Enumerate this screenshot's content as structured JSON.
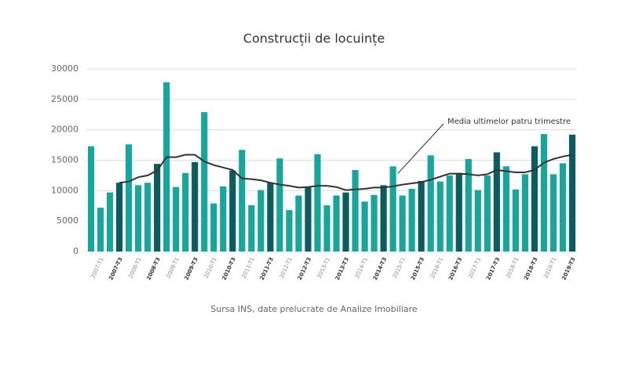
{
  "chart_data": {
    "type": "bar",
    "title": "Construcții de locuințe",
    "source": "Sursa INS, date prelucrate de Analize Imobiliare",
    "categories": [
      null,
      "2007-T1",
      null,
      "2007-T3",
      null,
      "2008-T1",
      null,
      "2008-T3",
      null,
      "2009-T1",
      null,
      "2009-T3",
      null,
      "2010-T1",
      null,
      "2010-T3",
      null,
      "2011-T1",
      null,
      "2011-T3",
      null,
      "2012-T1",
      null,
      "2012-T3",
      null,
      "2013-T1",
      null,
      "2013-T3",
      null,
      "2014-T1",
      null,
      "2014-T3",
      null,
      "2015-T1",
      null,
      "2015-T3",
      null,
      "2016-T1",
      null,
      "2016-T3",
      null,
      "2017-T1",
      null,
      "2017-T3",
      null,
      "2018-T1",
      null,
      "2018-T3",
      null,
      "2019-T1",
      null,
      "2019-T3"
    ],
    "bars": {
      "values": [
        17300,
        7200,
        9700,
        11300,
        17600,
        10900,
        11300,
        14400,
        27800,
        10600,
        12900,
        14700,
        22900,
        7900,
        10700,
        13300,
        16700,
        7600,
        10100,
        11300,
        15300,
        6800,
        9200,
        10700,
        16000,
        7600,
        9200,
        9700,
        13400,
        8200,
        9300,
        10900,
        14000,
        9200,
        10300,
        11600,
        15800,
        11500,
        12500,
        12900,
        15200,
        10100,
        12500,
        16300,
        14000,
        10200,
        12700,
        17300,
        19300,
        12700,
        14500,
        19200
      ],
      "colors": [
        "#17a59c",
        "#17a59c",
        "#17a59c",
        "#0b5c60",
        "#17a59c",
        "#17a59c",
        "#17a59c",
        "#0b5c60",
        "#17a59c",
        "#17a59c",
        "#17a59c",
        "#0b5c60",
        "#17a59c",
        "#17a59c",
        "#17a59c",
        "#0b5c60",
        "#17a59c",
        "#17a59c",
        "#17a59c",
        "#0b5c60",
        "#17a59c",
        "#17a59c",
        "#17a59c",
        "#0b5c60",
        "#17a59c",
        "#17a59c",
        "#17a59c",
        "#0b5c60",
        "#17a59c",
        "#17a59c",
        "#17a59c",
        "#0b5c60",
        "#17a59c",
        "#17a59c",
        "#17a59c",
        "#0b5c60",
        "#17a59c",
        "#17a59c",
        "#17a59c",
        "#0b5c60",
        "#17a59c",
        "#17a59c",
        "#17a59c",
        "#0b5c60",
        "#17a59c",
        "#17a59c",
        "#17a59c",
        "#0b5c60",
        "#17a59c",
        "#17a59c",
        "#17a59c",
        "#0b5c60"
      ]
    },
    "line": {
      "label": "Media ultimelor patru trimestre",
      "color": "#333333",
      "values": [
        null,
        null,
        null,
        11300,
        11500,
        12200,
        12500,
        13300,
        15500,
        15500,
        15900,
        15900,
        14800,
        14200,
        13800,
        13400,
        12000,
        11900,
        11700,
        11300,
        11000,
        10800,
        10500,
        10600,
        10800,
        10800,
        10600,
        10100,
        10200,
        10300,
        10500,
        10500,
        10700,
        11000,
        11200,
        11400,
        11800,
        12300,
        12800,
        12800,
        12700,
        12500,
        12700,
        13400,
        13200,
        13000,
        13000,
        13400,
        14600,
        15200,
        15600,
        15900
      ]
    },
    "ylim": [
      0,
      30000
    ],
    "yticks": [
      0,
      5000,
      10000,
      15000,
      20000,
      25000,
      30000
    ],
    "grid": true
  }
}
